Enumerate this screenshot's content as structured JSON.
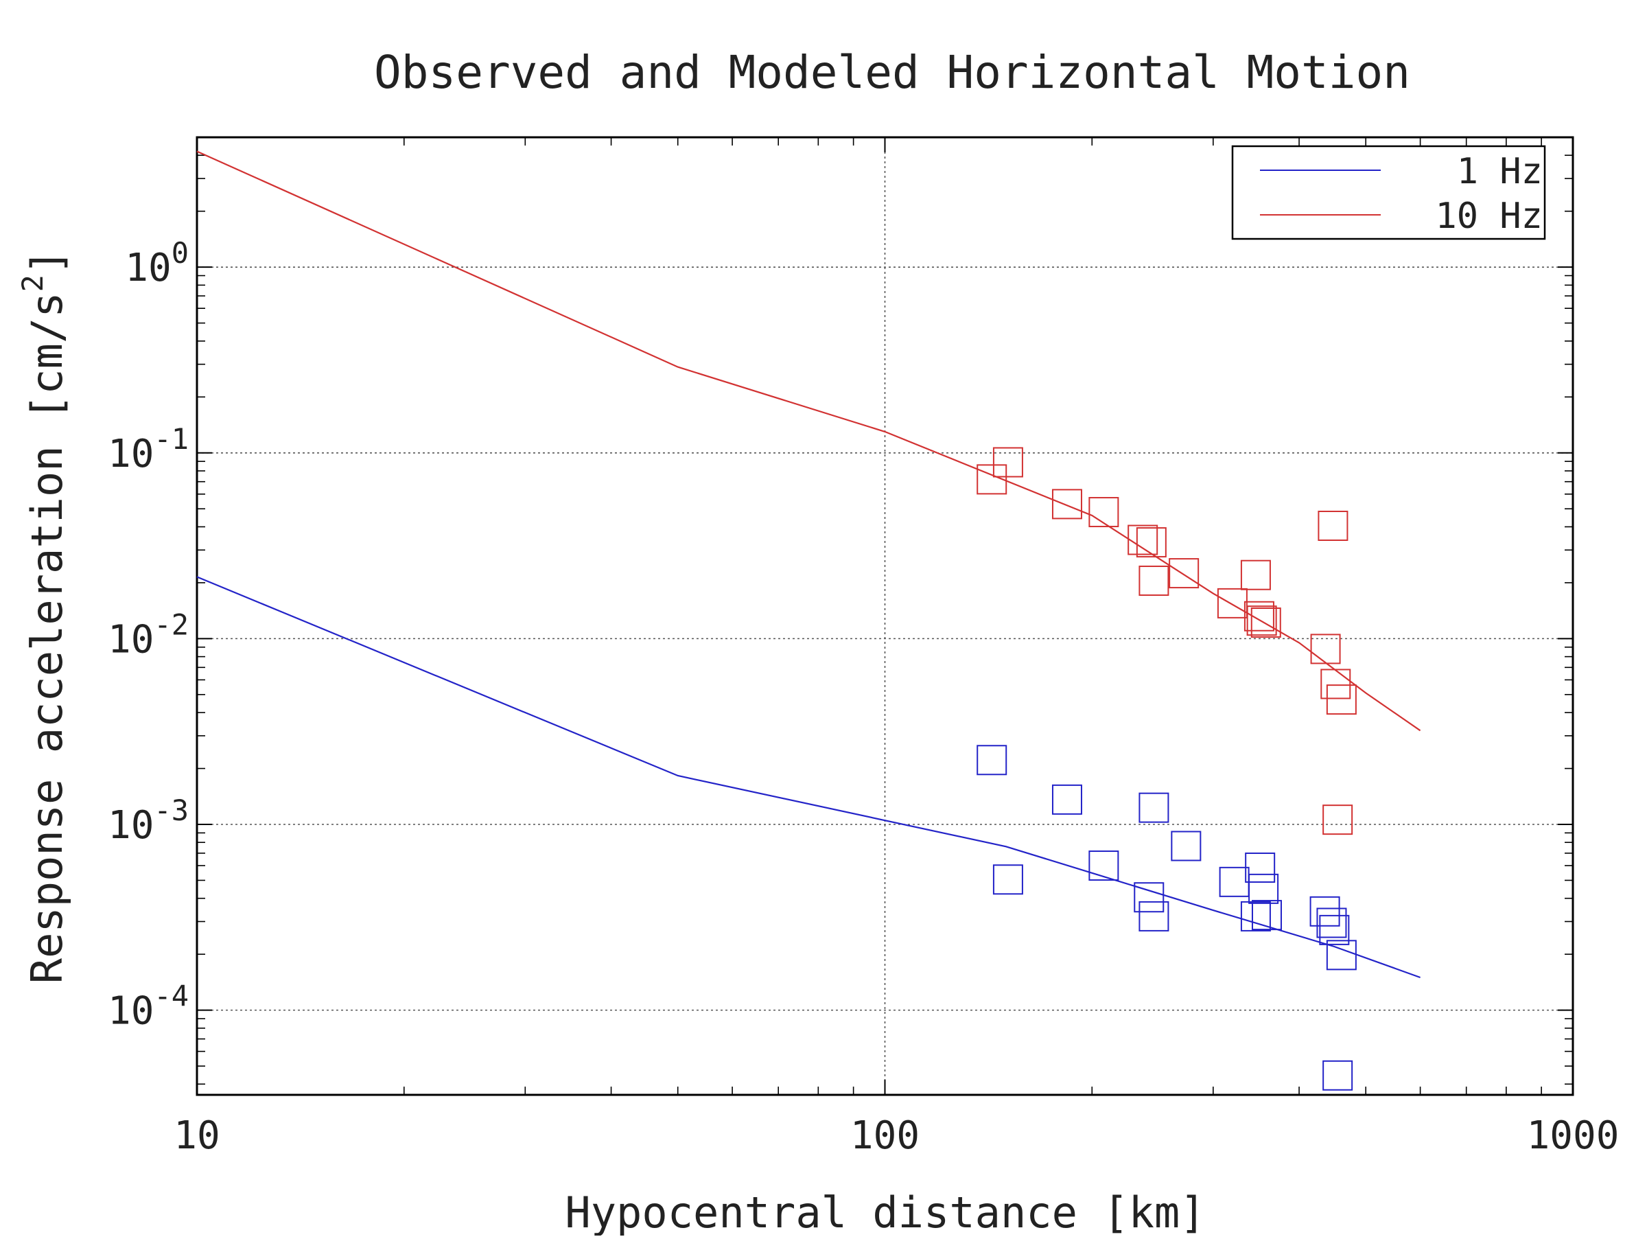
{
  "chart_data": {
    "type": "scatter",
    "title": "Observed and Modeled Horizontal Motion",
    "xlabel": "Hypocentral distance [km]",
    "ylabel": "Response acceleration [cm/s",
    "ylabel_exponent": "2",
    "ylabel_close": "]",
    "x_scale": "log",
    "y_scale": "log",
    "xlim": [
      10,
      1000
    ],
    "ylim": [
      3.5e-05,
      5
    ],
    "grid": true,
    "legend_position": "top-right",
    "x_ticks": [
      {
        "value": 10,
        "label": "10"
      },
      {
        "value": 100,
        "label": "100"
      },
      {
        "value": 1000,
        "label": "1000"
      }
    ],
    "y_ticks": [
      {
        "value": 1,
        "base": "10",
        "exp": "0"
      },
      {
        "value": 0.1,
        "base": "10",
        "exp": "-1"
      },
      {
        "value": 0.01,
        "base": "10",
        "exp": "-2"
      },
      {
        "value": 0.001,
        "base": "10",
        "exp": "-3"
      },
      {
        "value": 0.0001,
        "base": "10",
        "exp": "-4"
      }
    ],
    "series": [
      {
        "name": "1 Hz",
        "color": "#2323c8",
        "model_line": {
          "x": [
            10,
            50,
            150,
            300,
            450,
            600
          ],
          "y": [
            0.0215,
            0.00183,
            0.00076,
            0.000345,
            0.00022,
            0.00015
          ]
        },
        "observed": {
          "x": [
            143,
            151,
            184,
            208,
            242,
            246,
            246,
            274,
            322,
            346,
            351,
            355,
            359,
            436,
            446,
            450,
            455,
            461
          ],
          "y": [
            0.00222,
            0.000505,
            0.00136,
            0.0006,
            0.000405,
            0.00123,
            0.00032,
            0.000765,
            0.00049,
            0.00032,
            0.000585,
            0.00045,
            0.000325,
            0.00034,
            0.000295,
            0.00027,
            4.45e-05,
            0.000198
          ]
        }
      },
      {
        "name": "10 Hz",
        "color": "#d23232",
        "model_line": {
          "x": [
            10,
            50,
            100,
            200,
            300,
            400,
            500,
            600
          ],
          "y": [
            4.2,
            0.29,
            0.13,
            0.046,
            0.0175,
            0.0095,
            0.0051,
            0.0032
          ]
        },
        "observed": {
          "x": [
            143,
            151,
            184,
            208,
            237,
            244,
            246,
            272,
            320,
            346,
            350,
            353,
            358,
            437,
            448,
            452,
            455,
            461
          ],
          "y": [
            0.072,
            0.089,
            0.053,
            0.048,
            0.034,
            0.033,
            0.0205,
            0.0225,
            0.0155,
            0.022,
            0.0132,
            0.0125,
            0.0122,
            0.0088,
            0.0405,
            0.0057,
            0.00106,
            0.0047
          ]
        }
      }
    ]
  }
}
